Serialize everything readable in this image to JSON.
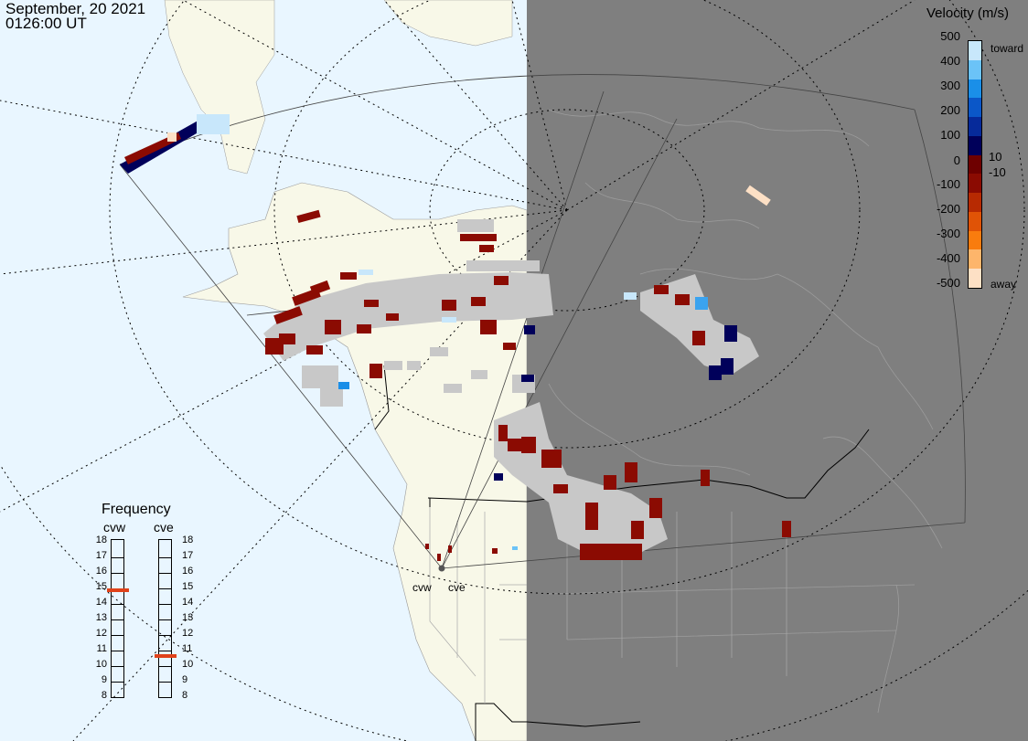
{
  "header": {
    "date": "September, 20 2021",
    "time": "0126:00 UT"
  },
  "colorbar": {
    "title": "Velocity (m/s)",
    "ticks": [
      "500",
      "400",
      "300",
      "200",
      "100",
      "10",
      "0",
      "-10",
      "-100",
      "-200",
      "-300",
      "-400",
      "-500"
    ],
    "toward_label": "toward",
    "away_label": "away",
    "colors": [
      "#fde0c5",
      "#fdb56b",
      "#f97c0e",
      "#e05306",
      "#b72a02",
      "#8b0b02",
      "#6e0000",
      "#00005a",
      "#062a9a",
      "#0b57c8",
      "#1a8fe8",
      "#6bc3f7",
      "#c8e7fb"
    ]
  },
  "frequency": {
    "title": "Frequency",
    "radars": [
      "cvw",
      "cve"
    ],
    "scale": [
      "18",
      "17",
      "16",
      "15",
      "14",
      "13",
      "12",
      "11",
      "10",
      "9",
      "8"
    ],
    "cvw_mhz": 14.8,
    "cve_mhz": 10.6,
    "marker_color": "#e0421a"
  },
  "sites": {
    "west": "cvw",
    "east": "cve"
  },
  "colors": {
    "ocean": "#e9f6ff",
    "land": "#f8f8e8",
    "night": "#7f7f7f",
    "gs_gray": "#c8c8c8"
  }
}
